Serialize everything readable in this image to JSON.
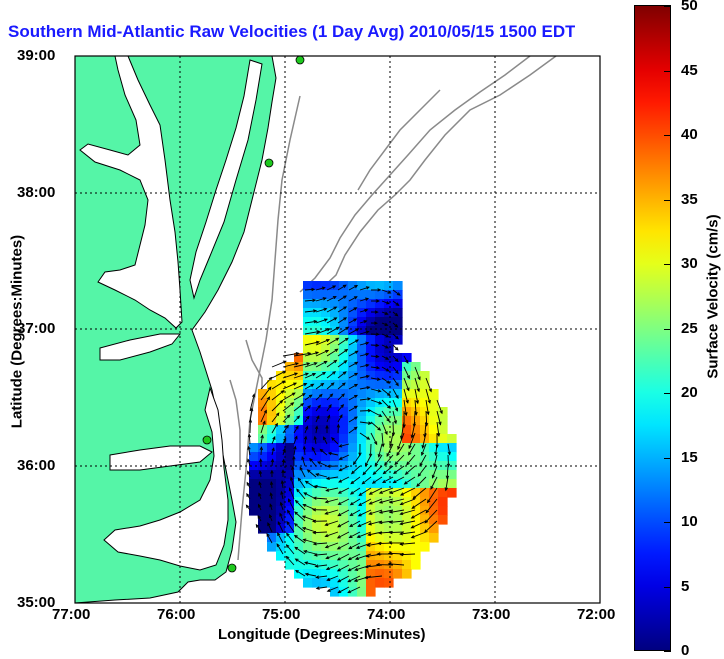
{
  "title": "Southern Mid-Atlantic Raw Velocities (1 Day Avg) 2010/05/15 1500 EDT",
  "map": {
    "x_label": "Longitude (Degrees:Minutes)",
    "y_label": "Latitude (Degrees:Minutes)",
    "lon_ticks": [
      "77:00",
      "76:00",
      "75:00",
      "74:00",
      "73:00",
      "72:00"
    ],
    "lat_ticks": [
      "39:00",
      "38:00",
      "37:00",
      "36:00",
      "35:00"
    ],
    "lon_range": [
      -77,
      -72
    ],
    "lat_range": [
      35,
      39
    ],
    "land_color": "#55f5a7",
    "bathymetry_color": "#8a8a8a",
    "station_color": "#1ec81e",
    "grid": true
  },
  "colorbar": {
    "label": "Surface Velocity (cm/s)",
    "ticks": [
      "0",
      "5",
      "10",
      "15",
      "20",
      "25",
      "30",
      "35",
      "40",
      "45",
      "50"
    ],
    "range": [
      0,
      50
    ],
    "colormap": "jet"
  }
}
